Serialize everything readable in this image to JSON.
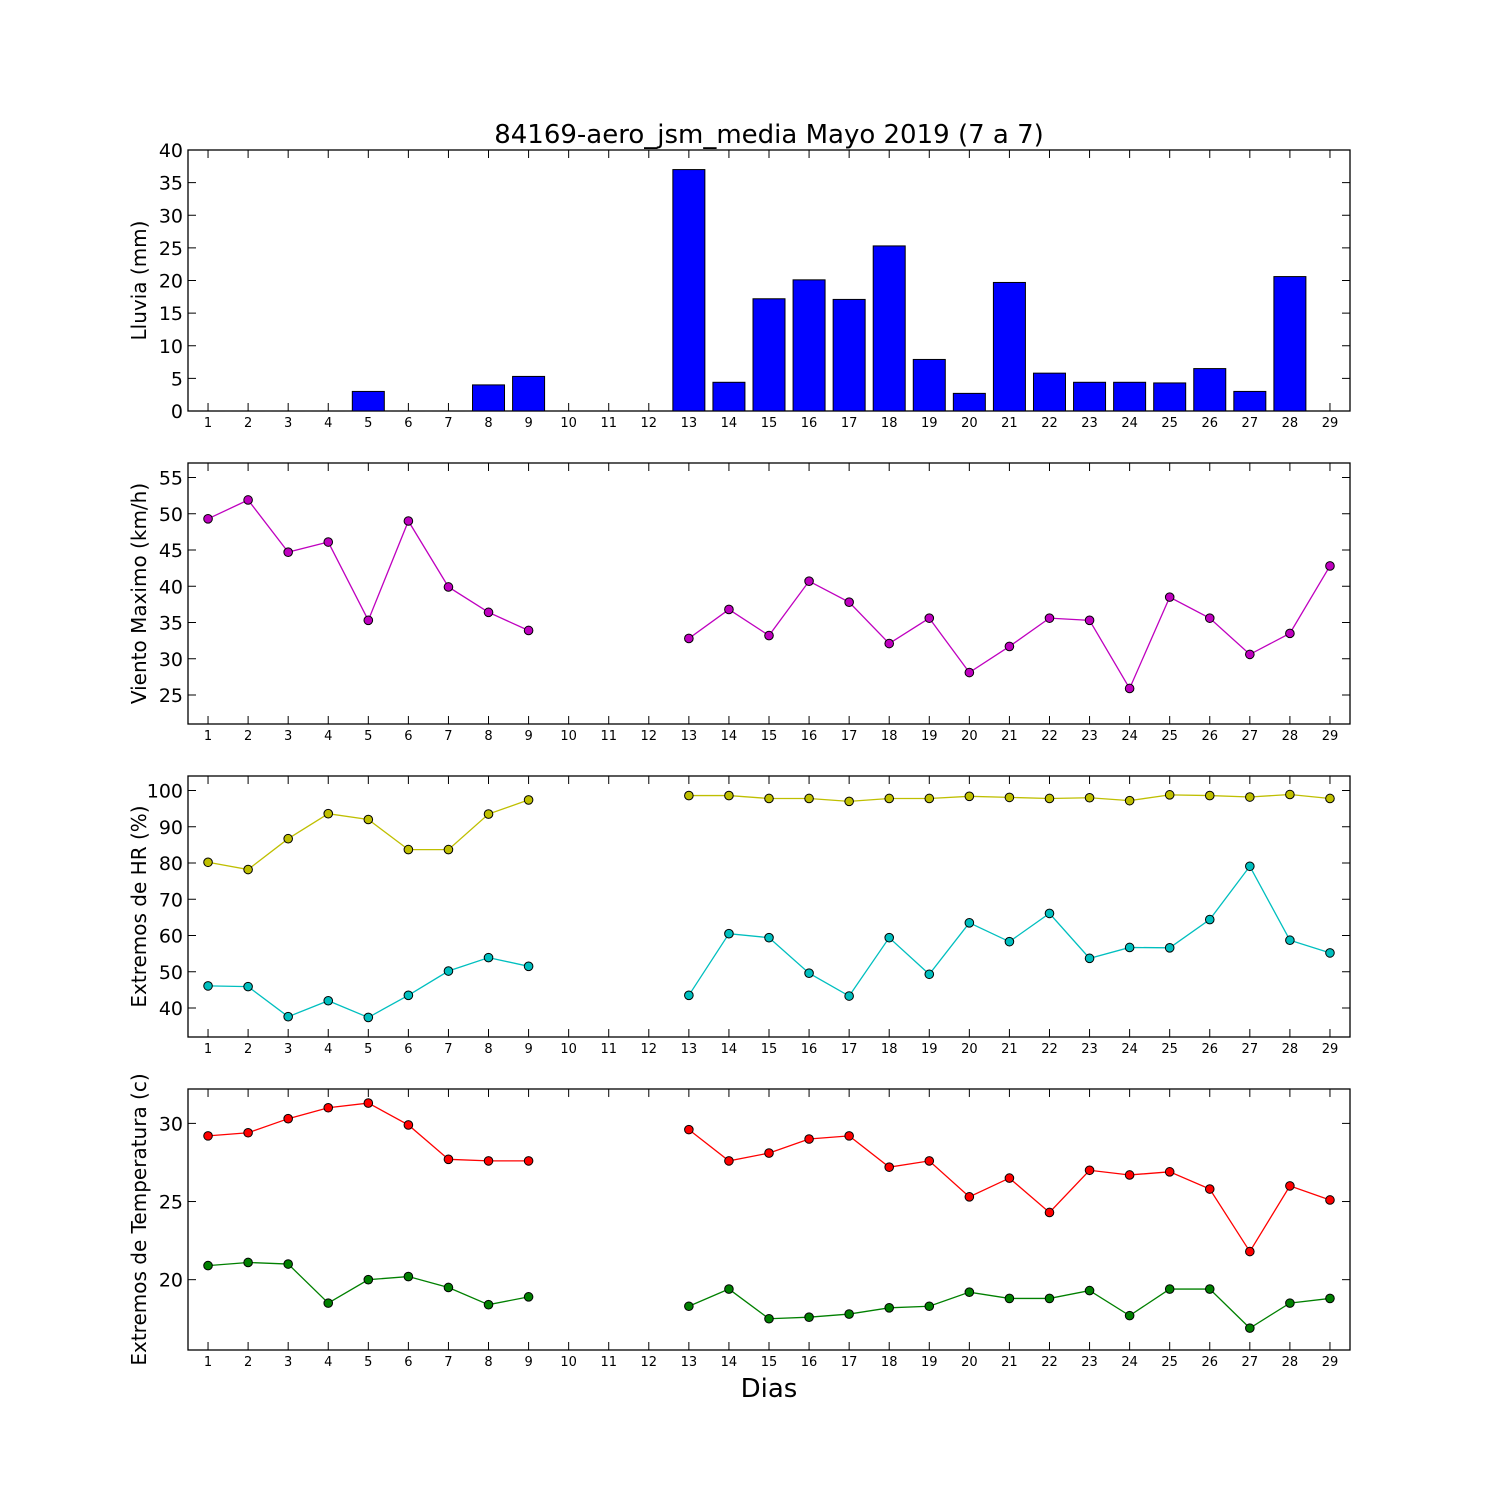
{
  "title": "84169-aero_jsm_media Mayo 2019  (7 a 7)",
  "xlabel": "Dias",
  "chart_data": [
    {
      "type": "bar",
      "ylabel": "Lluvia (mm)",
      "ylim": [
        0,
        40
      ],
      "yticks": [
        0,
        5,
        10,
        15,
        20,
        25,
        30,
        35,
        40
      ],
      "xlim": [
        0.5,
        29.5
      ],
      "xticks": [
        1,
        2,
        3,
        4,
        5,
        6,
        7,
        8,
        9,
        10,
        11,
        12,
        13,
        14,
        15,
        16,
        17,
        18,
        19,
        20,
        21,
        22,
        23,
        24,
        25,
        26,
        27,
        28,
        29
      ],
      "series": [
        {
          "color": "#0000ff",
          "points": [
            [
              1,
              0
            ],
            [
              2,
              0
            ],
            [
              3,
              0
            ],
            [
              4,
              0
            ],
            [
              5,
              3
            ],
            [
              6,
              0
            ],
            [
              7,
              0
            ],
            [
              8,
              4
            ],
            [
              9,
              5.3
            ],
            [
              13,
              37
            ],
            [
              14,
              4.4
            ],
            [
              15,
              17.2
            ],
            [
              16,
              20.1
            ],
            [
              17,
              17.1
            ],
            [
              18,
              25.3
            ],
            [
              19,
              7.9
            ],
            [
              20,
              2.7
            ],
            [
              21,
              19.7
            ],
            [
              22,
              5.8
            ],
            [
              23,
              4.4
            ],
            [
              24,
              4.4
            ],
            [
              25,
              4.3
            ],
            [
              26,
              6.5
            ],
            [
              27,
              3
            ],
            [
              28,
              20.6
            ]
          ]
        }
      ]
    },
    {
      "type": "line",
      "ylabel": "Viento Maximo (km/h)",
      "ylim": [
        21,
        57
      ],
      "yticks": [
        25,
        30,
        35,
        40,
        45,
        50,
        55
      ],
      "xlim": [
        0.5,
        29.5
      ],
      "xticks": [
        1,
        2,
        3,
        4,
        5,
        6,
        7,
        8,
        9,
        10,
        11,
        12,
        13,
        14,
        15,
        16,
        17,
        18,
        19,
        20,
        21,
        22,
        23,
        24,
        25,
        26,
        27,
        28,
        29
      ],
      "series": [
        {
          "color": "#bf00bf",
          "values": [
            49.3,
            51.9,
            44.7,
            46.1,
            35.3,
            49,
            39.9,
            36.4,
            33.9,
            null,
            null,
            null,
            32.8,
            36.8,
            33.2,
            40.7,
            37.8,
            32.1,
            35.6,
            28.1,
            31.7,
            35.6,
            35.3,
            25.9,
            38.5,
            35.6,
            30.6,
            33.5,
            42.8
          ]
        }
      ]
    },
    {
      "type": "line",
      "ylabel": "Extremos de HR (%)",
      "ylim": [
        32,
        104
      ],
      "yticks": [
        40,
        50,
        60,
        70,
        80,
        90,
        100
      ],
      "xlim": [
        0.5,
        29.5
      ],
      "xticks": [
        1,
        2,
        3,
        4,
        5,
        6,
        7,
        8,
        9,
        10,
        11,
        12,
        13,
        14,
        15,
        16,
        17,
        18,
        19,
        20,
        21,
        22,
        23,
        24,
        25,
        26,
        27,
        28,
        29
      ],
      "series": [
        {
          "color": "#bfbf00",
          "values": [
            80.2,
            78.2,
            86.7,
            93.6,
            92,
            83.7,
            83.7,
            93.5,
            97.4,
            null,
            null,
            null,
            98.6,
            98.6,
            97.8,
            97.8,
            97,
            97.8,
            97.8,
            98.4,
            98.1,
            97.8,
            98,
            97.2,
            98.8,
            98.6,
            98.2,
            98.9,
            97.8
          ]
        },
        {
          "color": "#00bfbf",
          "values": [
            46.1,
            45.9,
            37.6,
            42,
            37.4,
            43.5,
            50.2,
            53.9,
            51.5,
            null,
            null,
            null,
            43.5,
            60.5,
            59.4,
            49.6,
            43.3,
            59.4,
            49.3,
            63.5,
            58.3,
            66.1,
            53.7,
            56.7,
            56.6,
            64.4,
            79.1,
            58.7,
            55.2
          ]
        }
      ]
    },
    {
      "type": "line",
      "ylabel": "Extremos de Temperatura (c)",
      "ylim": [
        15.5,
        32.2
      ],
      "yticks": [
        20,
        25,
        30
      ],
      "xlim": [
        0.5,
        29.5
      ],
      "xticks": [
        1,
        2,
        3,
        4,
        5,
        6,
        7,
        8,
        9,
        10,
        11,
        12,
        13,
        14,
        15,
        16,
        17,
        18,
        19,
        20,
        21,
        22,
        23,
        24,
        25,
        26,
        27,
        28,
        29
      ],
      "series": [
        {
          "color": "#ff0000",
          "values": [
            29.2,
            29.4,
            30.3,
            31,
            31.3,
            29.9,
            27.7,
            27.6,
            27.6,
            null,
            null,
            null,
            29.6,
            27.6,
            28.1,
            29,
            29.2,
            27.2,
            27.6,
            25.3,
            26.5,
            24.3,
            27,
            26.7,
            26.9,
            25.8,
            21.8,
            26,
            25.1
          ]
        },
        {
          "color": "#008000",
          "values": [
            20.9,
            21.1,
            21,
            18.5,
            20,
            20.2,
            19.5,
            18.4,
            18.9,
            null,
            null,
            null,
            18.3,
            19.4,
            17.5,
            17.6,
            17.8,
            18.2,
            18.3,
            19.2,
            18.8,
            18.8,
            19.3,
            17.7,
            19.4,
            19.4,
            16.9,
            18.5,
            18.8
          ]
        }
      ]
    }
  ]
}
